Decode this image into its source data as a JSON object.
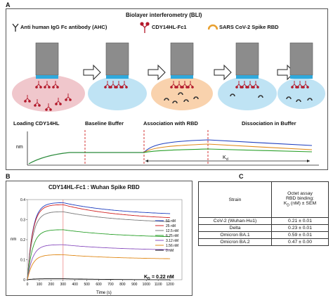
{
  "panelA": {
    "letter": "A",
    "title": "Biolayer interferometry (BLI)",
    "legend": {
      "ahc": "Anti human IgG Fc antibody (AHC)",
      "cdy": "CDY14HL-Fc1",
      "rbd": "SARS CoV-2 Spike RBD"
    },
    "steps": [
      "Loading CDY14HL",
      "Baseline Buffer",
      "Association with RBD",
      "Dissociation in Buffer"
    ],
    "ylabel": "nm",
    "kd_label": "K",
    "kd_sub": "d"
  },
  "panelB": {
    "letter": "B",
    "title": "CDY14HL-Fc1 : Wuhan Spike RBD",
    "kd_text": "= 0.22 nM",
    "kd_prefix": "K",
    "kd_sub": "D",
    "chart_data": {
      "type": "line",
      "xlabel": "Time (s)",
      "ylabel": "nm",
      "xlim": [
        0,
        1300
      ],
      "ylim": [
        0,
        0.4
      ],
      "xticks": [
        0,
        100,
        200,
        300,
        400,
        500,
        600,
        700,
        800,
        900,
        1000,
        1100,
        1200
      ],
      "yticks": [
        0,
        0.1,
        0.2,
        0.3,
        0.4
      ],
      "ytick_labels": [
        "0",
        "0.1",
        "0.2",
        "0.3",
        "0.4"
      ],
      "association_end": 300,
      "series": [
        {
          "name": "50 nM",
          "color": "#1f3fbf",
          "plateau": 0.385,
          "end": 0.33
        },
        {
          "name": "25 nM",
          "color": "#d02020",
          "plateau": 0.375,
          "end": 0.31
        },
        {
          "name": "12.5 nM",
          "color": "#7a7a7a",
          "plateau": 0.34,
          "end": 0.29
        },
        {
          "name": "6.25 nM",
          "color": "#2aa02a",
          "plateau": 0.25,
          "end": 0.215
        },
        {
          "name": "3.12 nM",
          "color": "#8a4fbf",
          "plateau": 0.175,
          "end": 0.15
        },
        {
          "name": "1.56 nM",
          "color": "#e08a1a",
          "plateau": 0.125,
          "end": 0.105
        },
        {
          "name": "0 nM",
          "color": "#1a1a1a",
          "plateau": 0.005,
          "end": 0.0
        }
      ]
    }
  },
  "panelC": {
    "letter": "C",
    "header_strain": "Strain",
    "header_binding_l1": "Octet assay",
    "header_binding_l2": "RBD binding:",
    "header_binding_l3a": "K",
    "header_binding_l3sub": "D",
    "header_binding_l3b": " (nM) ± SEM",
    "rows": [
      {
        "strain": "CoV-2 (Wuhan-Hu1)",
        "value": "0.21 ± 0.01"
      },
      {
        "strain": "Delta",
        "value": "0.23 ± 0.01"
      },
      {
        "strain": "Omicron BA.1",
        "value": "0.59 ± 0.01"
      },
      {
        "strain": "Omicron BA.2",
        "value": "0.47 ± 0.00"
      }
    ]
  }
}
